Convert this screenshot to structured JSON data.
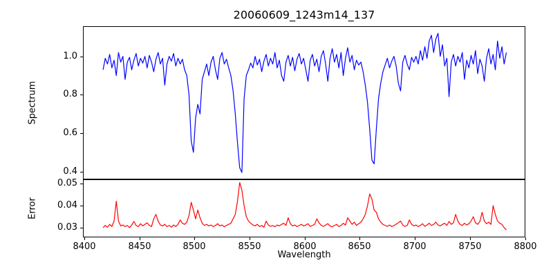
{
  "figure": {
    "title": "20060609_1243m14_137",
    "xlabel": "Wavelength",
    "background": "#ffffff",
    "frame_color": "#000000"
  },
  "chart_data": [
    {
      "type": "line",
      "name": "spectrum",
      "ylabel": "Spectrum",
      "color": "#0000ff",
      "line_width": 1.2,
      "grid": false,
      "legend": "none",
      "xlim": [
        8398.75,
        8800.25
      ],
      "ylim": [
        0.359,
        1.157
      ],
      "yticks": [
        {
          "v": 0.4,
          "label": "0.4"
        },
        {
          "v": 0.6,
          "label": "0.6"
        },
        {
          "v": 0.8,
          "label": "0.8"
        },
        {
          "v": 1.0,
          "label": "1.0"
        }
      ],
      "xticks": [],
      "x_start": 8417,
      "x_step": 2,
      "values": [
        0.93,
        0.99,
        0.96,
        1.01,
        0.94,
        0.98,
        0.9,
        1.02,
        0.97,
        1.0,
        0.88,
        0.97,
        0.995,
        0.93,
        0.98,
        1.015,
        0.95,
        0.99,
        0.965,
        1.0,
        0.94,
        1.005,
        0.97,
        0.92,
        0.985,
        1.02,
        0.96,
        0.99,
        0.85,
        0.96,
        1.0,
        0.975,
        1.015,
        0.95,
        0.99,
        0.96,
        0.985,
        0.93,
        0.9,
        0.8,
        0.56,
        0.5,
        0.68,
        0.75,
        0.7,
        0.88,
        0.92,
        0.96,
        0.9,
        0.97,
        1.0,
        0.93,
        0.88,
        0.99,
        1.02,
        0.96,
        0.985,
        0.94,
        0.9,
        0.82,
        0.7,
        0.55,
        0.42,
        0.395,
        0.78,
        0.9,
        0.93,
        0.965,
        0.94,
        1.0,
        0.955,
        0.985,
        0.92,
        0.975,
        1.01,
        0.95,
        0.99,
        0.96,
        1.02,
        0.94,
        0.98,
        0.9,
        0.87,
        0.97,
        1.005,
        0.95,
        0.995,
        0.925,
        0.985,
        1.015,
        0.96,
        0.99,
        0.93,
        0.87,
        0.98,
        1.01,
        0.95,
        0.985,
        0.92,
        1.0,
        1.03,
        0.96,
        0.87,
        0.99,
        1.04,
        0.97,
        1.01,
        0.94,
        1.02,
        0.9,
        0.99,
        1.045,
        0.97,
        1.005,
        0.93,
        0.98,
        0.955,
        0.97,
        0.92,
        0.85,
        0.76,
        0.62,
        0.46,
        0.44,
        0.62,
        0.78,
        0.86,
        0.92,
        0.955,
        0.99,
        0.94,
        0.975,
        1.0,
        0.95,
        0.86,
        0.82,
        0.97,
        1.005,
        0.96,
        0.93,
        0.995,
        0.97,
        1.0,
        0.96,
        1.03,
        0.98,
        1.05,
        0.99,
        1.08,
        1.11,
        1.02,
        1.09,
        1.12,
        1.0,
        1.06,
        0.95,
        0.99,
        0.79,
        0.97,
        1.01,
        0.95,
        1.0,
        0.97,
        1.02,
        0.88,
        0.98,
        0.94,
        1.005,
        0.96,
        1.03,
        0.91,
        0.985,
        0.95,
        0.87,
        0.99,
        1.04,
        0.96,
        1.01,
        0.93,
        1.08,
        0.99,
        1.05,
        0.96,
        1.02
      ],
      "absorption_features": [
        {
          "wavelength": 8498,
          "min_value": 0.5
        },
        {
          "wavelength": 8542,
          "min_value": 0.395
        },
        {
          "wavelength": 8662,
          "min_value": 0.44
        }
      ]
    },
    {
      "type": "line",
      "name": "error",
      "ylabel": "Error",
      "color": "#ff0000",
      "line_width": 1.2,
      "grid": false,
      "legend": "none",
      "xlim": [
        8398.75,
        8800.25
      ],
      "ylim": [
        0.0256,
        0.0519
      ],
      "yticks": [
        {
          "v": 0.03,
          "label": "0.03"
        },
        {
          "v": 0.04,
          "label": "0.04"
        },
        {
          "v": 0.05,
          "label": "0.05"
        }
      ],
      "xticks": [
        {
          "v": 8400,
          "label": "8400"
        },
        {
          "v": 8450,
          "label": "8450"
        },
        {
          "v": 8500,
          "label": "8500"
        },
        {
          "v": 8550,
          "label": "8550"
        },
        {
          "v": 8600,
          "label": "8600"
        },
        {
          "v": 8650,
          "label": "8650"
        },
        {
          "v": 8700,
          "label": "8700"
        },
        {
          "v": 8750,
          "label": "8750"
        },
        {
          "v": 8800,
          "label": "8800"
        }
      ],
      "x_start": 8417,
      "x_step": 2,
      "values": [
        0.03,
        0.031,
        0.0302,
        0.0315,
        0.0305,
        0.033,
        0.042,
        0.033,
        0.0308,
        0.0312,
        0.0305,
        0.031,
        0.03,
        0.0312,
        0.0328,
        0.031,
        0.0305,
        0.0318,
        0.0308,
        0.0315,
        0.0322,
        0.031,
        0.0305,
        0.034,
        0.036,
        0.033,
        0.0312,
        0.0308,
        0.0315,
        0.0305,
        0.031,
        0.0302,
        0.0312,
        0.0305,
        0.0315,
        0.0335,
        0.032,
        0.0315,
        0.0325,
        0.0355,
        0.0415,
        0.038,
        0.034,
        0.038,
        0.0345,
        0.032,
        0.031,
        0.0315,
        0.0308,
        0.0312,
        0.0305,
        0.031,
        0.0318,
        0.0308,
        0.0312,
        0.0304,
        0.031,
        0.0315,
        0.032,
        0.034,
        0.036,
        0.042,
        0.0505,
        0.047,
        0.04,
        0.035,
        0.033,
        0.032,
        0.0312,
        0.0308,
        0.0315,
        0.0305,
        0.031,
        0.0302,
        0.033,
        0.0312,
        0.0306,
        0.031,
        0.0304,
        0.0312,
        0.0308,
        0.0315,
        0.032,
        0.031,
        0.0345,
        0.0318,
        0.0308,
        0.0312,
        0.0305,
        0.031,
        0.0315,
        0.0308,
        0.0312,
        0.0318,
        0.0306,
        0.031,
        0.0315,
        0.034,
        0.0322,
        0.031,
        0.0306,
        0.0312,
        0.0318,
        0.0308,
        0.0304,
        0.031,
        0.0315,
        0.0305,
        0.031,
        0.032,
        0.0312,
        0.0345,
        0.033,
        0.0315,
        0.0325,
        0.031,
        0.0318,
        0.0325,
        0.034,
        0.036,
        0.04,
        0.0453,
        0.043,
        0.038,
        0.037,
        0.034,
        0.0325,
        0.0315,
        0.031,
        0.0306,
        0.0312,
        0.0305,
        0.031,
        0.0316,
        0.0322,
        0.033,
        0.0312,
        0.0306,
        0.031,
        0.0335,
        0.0315,
        0.0308,
        0.0312,
        0.0305,
        0.031,
        0.0318,
        0.0306,
        0.0312,
        0.032,
        0.031,
        0.0315,
        0.0325,
        0.0312,
        0.0308,
        0.0315,
        0.032,
        0.031,
        0.0328,
        0.0315,
        0.0322,
        0.036,
        0.033,
        0.0315,
        0.031,
        0.032,
        0.0312,
        0.0318,
        0.033,
        0.035,
        0.0322,
        0.0315,
        0.0328,
        0.037,
        0.033,
        0.0318,
        0.0325,
        0.0315,
        0.04,
        0.036,
        0.033,
        0.032,
        0.0315,
        0.03,
        0.029
      ],
      "error_peaks": [
        {
          "wavelength": 8429,
          "value": 0.042
        },
        {
          "wavelength": 8497,
          "value": 0.0415
        },
        {
          "wavelength": 8541,
          "value": 0.0505
        },
        {
          "wavelength": 8659,
          "value": 0.0453
        },
        {
          "wavelength": 8771,
          "value": 0.04
        }
      ]
    }
  ]
}
